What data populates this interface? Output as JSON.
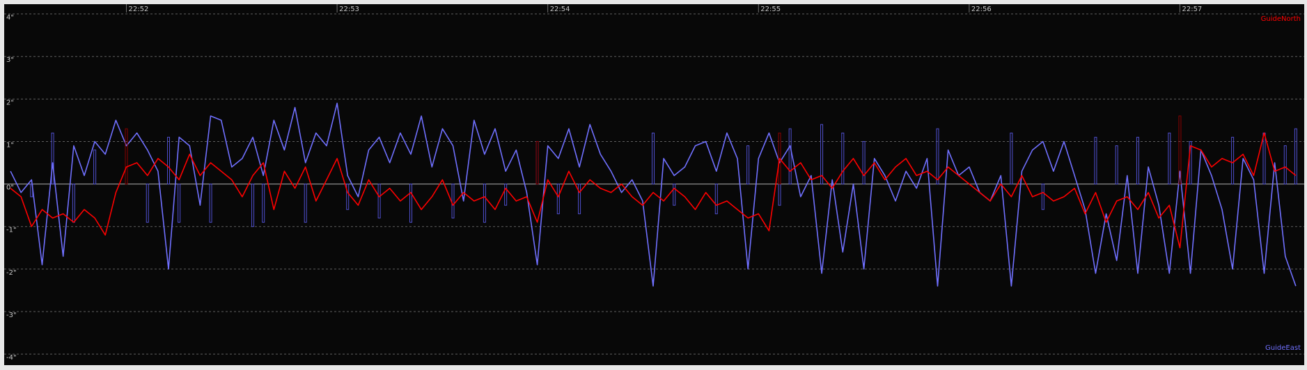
{
  "chart_data": {
    "type": "line",
    "x": [
      51.45,
      51.5,
      51.55,
      51.6,
      51.65,
      51.7,
      51.75,
      51.8,
      51.85,
      51.9,
      51.95,
      52.0,
      52.05,
      52.1,
      52.15,
      52.2,
      52.25,
      52.3,
      52.35,
      52.4,
      52.45,
      52.5,
      52.55,
      52.6,
      52.65,
      52.7,
      52.75,
      52.8,
      52.85,
      52.9,
      52.95,
      53.0,
      53.05,
      53.1,
      53.15,
      53.2,
      53.25,
      53.3,
      53.35,
      53.4,
      53.45,
      53.5,
      53.55,
      53.6,
      53.65,
      53.7,
      53.75,
      53.8,
      53.85,
      53.9,
      53.95,
      54.0,
      54.05,
      54.1,
      54.15,
      54.2,
      54.25,
      54.3,
      54.35,
      54.4,
      54.45,
      54.5,
      54.55,
      54.6,
      54.65,
      54.7,
      54.75,
      54.8,
      54.85,
      54.9,
      54.95,
      55.0,
      55.05,
      55.1,
      55.15,
      55.2,
      55.25,
      55.3,
      55.35,
      55.4,
      55.45,
      55.5,
      55.55,
      55.6,
      55.65,
      55.7,
      55.75,
      55.8,
      55.85,
      55.9,
      55.95,
      56.0,
      56.05,
      56.1,
      56.15,
      56.2,
      56.25,
      56.3,
      56.35,
      56.4,
      56.45,
      56.5,
      56.55,
      56.6,
      56.65,
      56.7,
      56.75,
      56.8,
      56.85,
      56.9,
      56.95,
      57.0,
      57.05,
      57.1,
      57.15,
      57.2,
      57.25,
      57.3,
      57.35,
      57.4,
      57.45,
      57.5,
      57.55
    ],
    "series": [
      {
        "name": "GuideEast",
        "color": "#7070ff",
        "pulse_color": "#5050d0",
        "values": [
          0.3,
          -0.2,
          0.1,
          -1.9,
          0.5,
          -1.7,
          0.9,
          0.2,
          1.0,
          0.7,
          1.5,
          0.9,
          1.2,
          0.8,
          0.3,
          -2.0,
          1.1,
          0.9,
          -0.5,
          1.6,
          1.5,
          0.4,
          0.6,
          1.1,
          0.2,
          1.5,
          0.8,
          1.8,
          0.5,
          1.2,
          0.9,
          1.9,
          0.2,
          -0.3,
          0.8,
          1.1,
          0.5,
          1.2,
          0.7,
          1.6,
          0.4,
          1.3,
          0.9,
          -0.4,
          1.5,
          0.7,
          1.3,
          0.3,
          0.8,
          -0.2,
          -1.9,
          0.9,
          0.6,
          1.3,
          0.4,
          1.4,
          0.7,
          0.3,
          -0.2,
          0.1,
          -0.4,
          -2.4,
          0.6,
          0.2,
          0.4,
          0.9,
          1.0,
          0.3,
          1.2,
          0.6,
          -2.0,
          0.6,
          1.2,
          0.5,
          0.9,
          -0.3,
          0.2,
          -2.1,
          0.1,
          -1.6,
          0.0,
          -2.0,
          0.6,
          0.2,
          -0.4,
          0.3,
          -0.1,
          0.6,
          -2.4,
          0.8,
          0.2,
          0.4,
          -0.2,
          -0.4,
          0.2,
          -2.4,
          0.3,
          0.8,
          1.0,
          0.3,
          1.0,
          0.2,
          -0.6,
          -2.1,
          -0.7,
          -1.8,
          0.2,
          -2.1,
          0.4,
          -0.5,
          -2.1,
          0.3,
          -2.1,
          0.8,
          0.2,
          -0.6,
          -2.0,
          0.6,
          0.1,
          -2.1,
          0.5,
          -1.7,
          -2.4
        ],
        "pulses": [
          null,
          null,
          -0.3,
          null,
          1.2,
          null,
          -0.9,
          null,
          0.8,
          null,
          null,
          null,
          null,
          -0.9,
          null,
          1.1,
          -0.9,
          null,
          null,
          -0.9,
          null,
          null,
          null,
          -1.0,
          -0.9,
          null,
          null,
          null,
          -0.9,
          null,
          null,
          null,
          -0.6,
          null,
          null,
          -0.8,
          null,
          null,
          -0.9,
          null,
          null,
          null,
          -0.8,
          null,
          null,
          -0.9,
          null,
          -0.5,
          null,
          null,
          1.0,
          null,
          -0.7,
          null,
          -0.7,
          null,
          null,
          null,
          null,
          null,
          null,
          1.2,
          null,
          -0.5,
          null,
          null,
          null,
          -0.7,
          null,
          null,
          0.9,
          null,
          null,
          -0.5,
          1.3,
          null,
          null,
          1.4,
          null,
          1.2,
          null,
          1.0,
          null,
          null,
          null,
          null,
          null,
          null,
          1.3,
          null,
          null,
          null,
          null,
          null,
          null,
          1.2,
          null,
          null,
          -0.6,
          null,
          null,
          null,
          null,
          1.1,
          null,
          0.9,
          null,
          1.1,
          null,
          null,
          1.2,
          null,
          1.0,
          null,
          null,
          null,
          1.1,
          null,
          null,
          1.2,
          null,
          0.9,
          1.3
        ]
      },
      {
        "name": "GuideNorth",
        "color": "#ff0000",
        "pulse_color": "#8b0000",
        "values": [
          -0.1,
          -0.3,
          -1.0,
          -0.6,
          -0.8,
          -0.7,
          -0.9,
          -0.6,
          -0.8,
          -1.2,
          -0.2,
          0.4,
          0.5,
          0.2,
          0.6,
          0.4,
          0.1,
          0.7,
          0.2,
          0.5,
          0.3,
          0.1,
          -0.3,
          0.2,
          0.5,
          -0.6,
          0.3,
          -0.1,
          0.4,
          -0.4,
          0.1,
          0.6,
          -0.2,
          -0.5,
          0.1,
          -0.3,
          -0.1,
          -0.4,
          -0.2,
          -0.6,
          -0.3,
          0.1,
          -0.5,
          -0.2,
          -0.4,
          -0.3,
          -0.6,
          -0.1,
          -0.4,
          -0.3,
          -0.9,
          0.1,
          -0.3,
          0.3,
          -0.2,
          0.1,
          -0.1,
          -0.2,
          0.0,
          -0.3,
          -0.5,
          -0.2,
          -0.4,
          -0.1,
          -0.3,
          -0.6,
          -0.2,
          -0.5,
          -0.4,
          -0.6,
          -0.8,
          -0.7,
          -1.1,
          0.6,
          0.3,
          0.5,
          0.1,
          0.2,
          -0.1,
          0.3,
          0.6,
          0.2,
          0.5,
          0.1,
          0.4,
          0.6,
          0.2,
          0.3,
          0.1,
          0.4,
          0.2,
          0.0,
          -0.2,
          -0.4,
          0.0,
          -0.3,
          0.2,
          -0.3,
          -0.2,
          -0.4,
          -0.3,
          -0.1,
          -0.7,
          -0.2,
          -0.9,
          -0.4,
          -0.3,
          -0.6,
          -0.2,
          -0.8,
          -0.5,
          -1.5,
          0.9,
          0.8,
          0.4,
          0.6,
          0.5,
          0.7,
          0.2,
          1.2,
          0.3,
          0.4,
          0.2
        ],
        "pulses": [
          null,
          null,
          null,
          null,
          null,
          null,
          null,
          null,
          null,
          null,
          null,
          1.3,
          null,
          null,
          null,
          null,
          null,
          null,
          null,
          null,
          null,
          null,
          null,
          null,
          null,
          null,
          null,
          null,
          null,
          null,
          null,
          null,
          null,
          null,
          null,
          null,
          null,
          null,
          null,
          null,
          null,
          null,
          null,
          null,
          null,
          null,
          null,
          null,
          null,
          null,
          1.0,
          null,
          null,
          null,
          null,
          null,
          null,
          null,
          null,
          null,
          null,
          null,
          null,
          null,
          null,
          null,
          null,
          null,
          null,
          null,
          null,
          null,
          null,
          1.2,
          null,
          null,
          null,
          null,
          null,
          null,
          null,
          null,
          null,
          null,
          null,
          null,
          null,
          null,
          null,
          null,
          null,
          null,
          null,
          null,
          null,
          null,
          null,
          null,
          null,
          null,
          null,
          null,
          null,
          null,
          null,
          null,
          null,
          null,
          null,
          null,
          null,
          1.6,
          null,
          null,
          null,
          null,
          null,
          null,
          null,
          null,
          null,
          null,
          null
        ]
      }
    ],
    "xlim": [
      51.42,
      57.59
    ],
    "xticks": [
      {
        "value": 52,
        "label": "22:52"
      },
      {
        "value": 53,
        "label": "22:53"
      },
      {
        "value": 54,
        "label": "22:54"
      },
      {
        "value": 55,
        "label": "22:55"
      },
      {
        "value": 56,
        "label": "22:56"
      },
      {
        "value": 57,
        "label": "22:57"
      }
    ],
    "ylim": [
      -4.26,
      4.23
    ],
    "yticks": [
      {
        "value": 4,
        "label": "4\""
      },
      {
        "value": 3,
        "label": "3\""
      },
      {
        "value": 2,
        "label": "2\""
      },
      {
        "value": 1,
        "label": "1\""
      },
      {
        "value": 0,
        "label": "0\""
      },
      {
        "value": -1,
        "label": "-1\""
      },
      {
        "value": -2,
        "label": "-2\""
      },
      {
        "value": -3,
        "label": "-3\""
      },
      {
        "value": -4,
        "label": "-4\""
      }
    ],
    "grid": true
  }
}
